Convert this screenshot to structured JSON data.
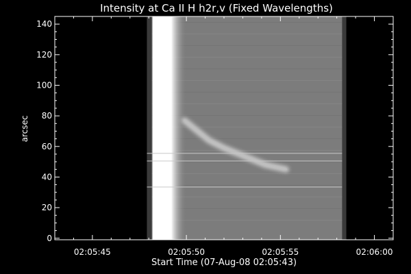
{
  "chart_data": {
    "type": "heatmap",
    "title": "Intensity at Ca II H h2r,v (Fixed Wavelengths)",
    "xlabel": "Start Time (07-Aug-08 02:05:43)",
    "ylabel": "arcsec",
    "x_tick_labels": [
      "02:05:45",
      "02:05:50",
      "02:05:55",
      "02:06:00"
    ],
    "x_tick_seconds": [
      45,
      50,
      55,
      60
    ],
    "xlim_seconds": [
      43,
      61
    ],
    "y_ticks": [
      0,
      20,
      40,
      60,
      80,
      100,
      120,
      140
    ],
    "ylim": [
      -1,
      145
    ],
    "data_extent_seconds": [
      47.9,
      58.5
    ],
    "bright_column_seconds": [
      48.2,
      49.2
    ],
    "colors": {
      "background": "#000000",
      "field": "#7c7c7c",
      "edge_band": "#3a3a3a",
      "bright": "#ffffff",
      "axes": "#ffffff"
    },
    "horizontal_lines_y": [
      55.5,
      50.5,
      33.5
    ],
    "bright_feature": [
      {
        "x": 49.9,
        "y": 77
      },
      {
        "x": 50.6,
        "y": 70
      },
      {
        "x": 51.2,
        "y": 64
      },
      {
        "x": 52.0,
        "y": 59
      },
      {
        "x": 53.0,
        "y": 54
      },
      {
        "x": 54.2,
        "y": 48
      },
      {
        "x": 55.3,
        "y": 45
      }
    ]
  }
}
